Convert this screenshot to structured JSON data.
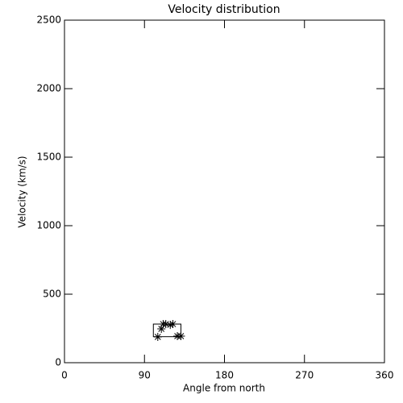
{
  "chart_data": {
    "type": "scatter",
    "title": "Velocity distribution",
    "x_label": "Angle from north",
    "y_label": "Velocity (km/s)",
    "x": [
      105,
      109,
      111,
      114,
      119,
      122,
      127,
      131
    ],
    "values": [
      188,
      247,
      282,
      282,
      276,
      282,
      194,
      194
    ],
    "color": "#000000",
    "box": {
      "x": [
        100,
        131
      ],
      "y": [
        190,
        282
      ]
    },
    "xlim": [
      0,
      360
    ],
    "xticks": [
      0,
      90,
      180,
      270,
      360
    ],
    "ylim": [
      0,
      2500
    ],
    "yticks": [
      0,
      500,
      1000,
      1500,
      2000,
      2500
    ]
  }
}
